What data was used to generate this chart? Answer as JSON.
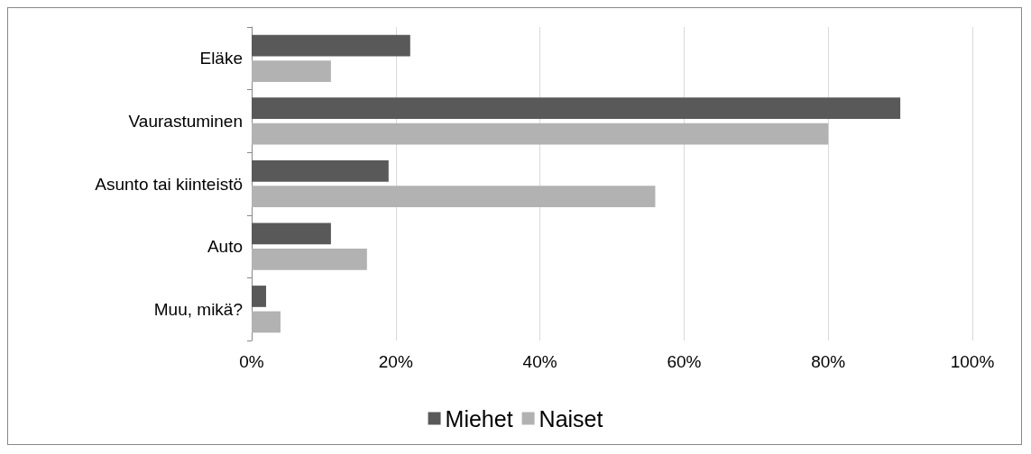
{
  "chart_data": {
    "type": "bar",
    "orientation": "horizontal",
    "categories": [
      "Eläke",
      "Vaurastuminen",
      "Asunto tai kiinteistö",
      "Auto",
      "Muu, mikä?"
    ],
    "series": [
      {
        "name": "Miehet",
        "color": "#595959",
        "values": [
          22,
          90,
          19,
          11,
          2
        ]
      },
      {
        "name": "Naiset",
        "color": "#b2b2b2",
        "values": [
          11,
          80,
          56,
          16,
          4
        ]
      }
    ],
    "xlim": [
      0,
      100
    ],
    "xticks": [
      {
        "value": 0,
        "label": "0%"
      },
      {
        "value": 20,
        "label": "20%"
      },
      {
        "value": 40,
        "label": "40%"
      },
      {
        "value": 60,
        "label": "60%"
      },
      {
        "value": 80,
        "label": "80%"
      },
      {
        "value": 100,
        "label": "100%"
      }
    ],
    "grid": "x",
    "legend": "bottom"
  }
}
